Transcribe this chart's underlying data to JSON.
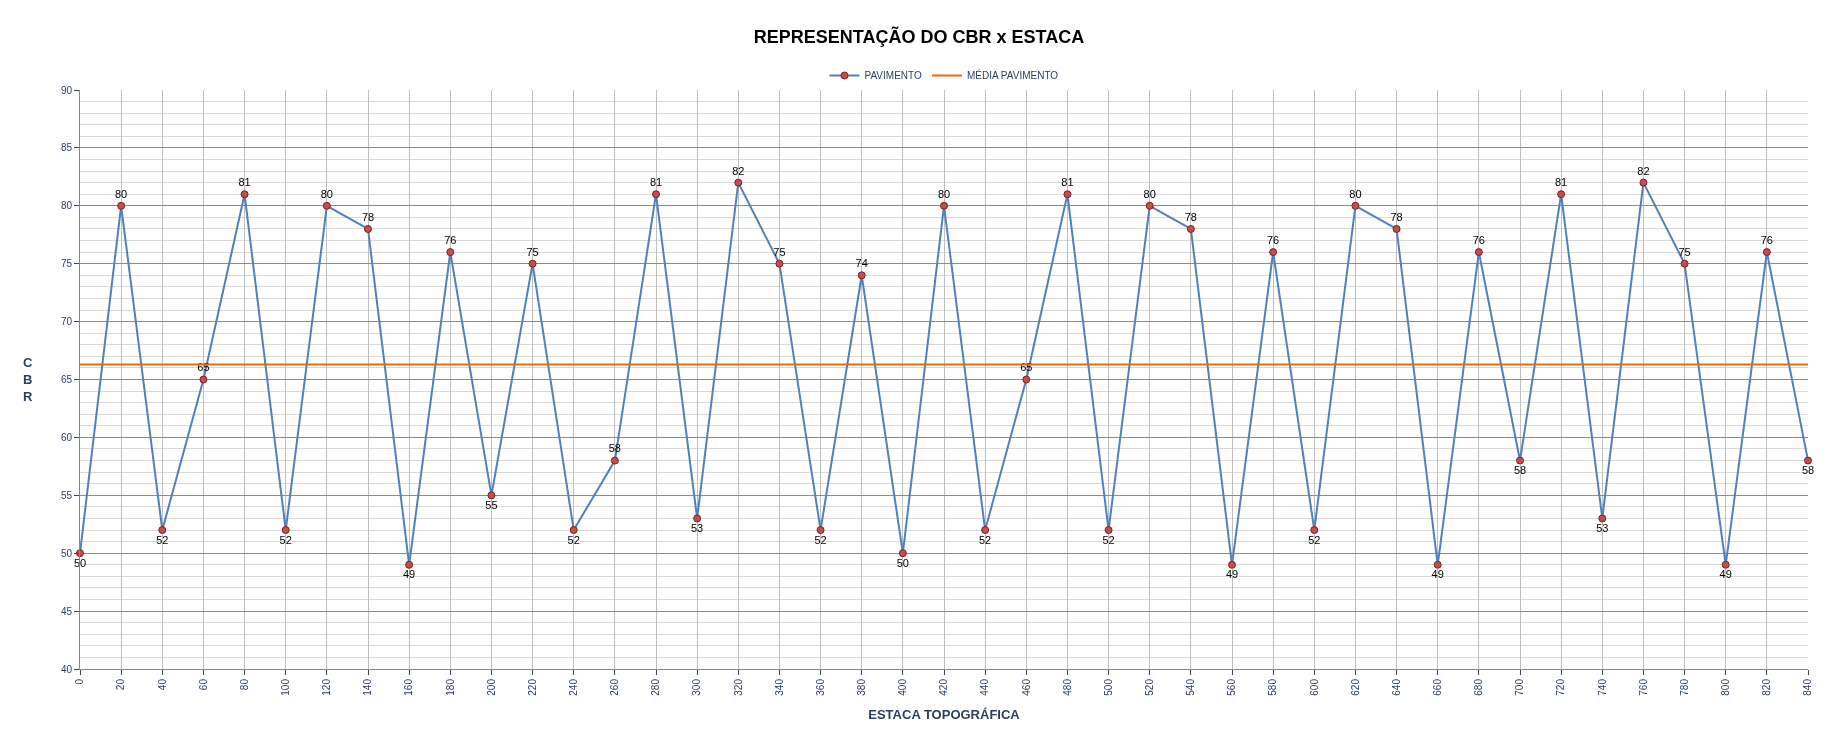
{
  "chart_data": {
    "type": "line",
    "title": "REPRESENTAÇÃO DO CBR x ESTACA",
    "xlabel": "ESTACA TOPOGRÁFICA",
    "ylabel": "CBR",
    "x": [
      0,
      20,
      40,
      60,
      80,
      100,
      120,
      140,
      160,
      180,
      200,
      220,
      240,
      260,
      280,
      300,
      320,
      340,
      360,
      380,
      400,
      420,
      440,
      460,
      480,
      500,
      520,
      540,
      560,
      580,
      600,
      620,
      640,
      660,
      680,
      700,
      720,
      740,
      760,
      780,
      800,
      820,
      840
    ],
    "series": [
      {
        "name": "PAVIMENTO",
        "color": "#4f81bd",
        "marker": "circle",
        "data_labels": true,
        "values": [
          50,
          80,
          52,
          65,
          81,
          52,
          80,
          78,
          49,
          76,
          55,
          75,
          52,
          58,
          81,
          53,
          82,
          75,
          52,
          74,
          50,
          80,
          52,
          65,
          81,
          52,
          80,
          78,
          49,
          76,
          52,
          80,
          78,
          49,
          76,
          58,
          81,
          53,
          82,
          75,
          49,
          76,
          58
        ]
      },
      {
        "name": "MÉDIA PAVIMENTO",
        "color": "#e46c0a",
        "marker": "none",
        "x": [
          0,
          840
        ],
        "values": [
          66.3,
          66.3
        ]
      }
    ],
    "xlim": [
      0,
      840
    ],
    "xticks": [
      0,
      20,
      40,
      60,
      80,
      100,
      120,
      140,
      160,
      180,
      200,
      220,
      240,
      260,
      280,
      300,
      320,
      340,
      360,
      380,
      400,
      420,
      440,
      460,
      480,
      500,
      520,
      540,
      560,
      580,
      600,
      620,
      640,
      660,
      680,
      700,
      720,
      740,
      760,
      780,
      800,
      820,
      840
    ],
    "ylim": [
      40,
      90
    ],
    "yticks": [
      40,
      45,
      50,
      55,
      60,
      65,
      70,
      75,
      80,
      85,
      90
    ],
    "grid": true,
    "legend": "top"
  }
}
